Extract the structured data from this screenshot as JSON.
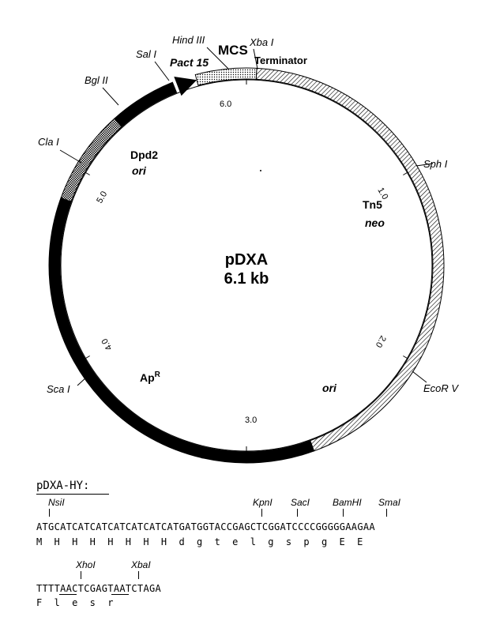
{
  "plasmid": {
    "name": "pDXA",
    "size": "6.1 kb",
    "scale_labels": [
      "1.0",
      "2.0",
      "3.0",
      "4.0",
      "5.0",
      "6.0"
    ],
    "restriction_sites": {
      "hind3": "Hind III",
      "mcs": "MCS",
      "xba1": "Xba I",
      "sal1": "Sal I",
      "bgl2": "Bgl II",
      "cla1": "Cla I",
      "sph1": "Sph I",
      "ecorv": "EcoR V",
      "sca1": "Sca I"
    },
    "features": {
      "pact15": "Pact 15",
      "terminator": "Terminator",
      "dpd2": "Dpd2",
      "ori_dpd2": "ori",
      "tn5": "Tn5",
      "neo": "neo",
      "apr": "Ap",
      "apr_sup": "R",
      "ori_bottom": "ori"
    }
  },
  "sequence": {
    "title": "pDXA-HY:",
    "line1": {
      "sites": [
        "NsiI",
        "KpnI",
        "SacI",
        "BamHI",
        "SmaI"
      ],
      "dna": "ATGCATCATCATCATCATCATCATGATGGTACCGAGCTCGGATCCCCGGGGGAAGAA",
      "protein": [
        "M",
        "H",
        "H",
        "H",
        "H",
        "H",
        "H",
        "H",
        "d",
        "g",
        "t",
        "e",
        "l",
        "g",
        "s",
        "p",
        "g",
        "E",
        "E"
      ]
    },
    "line2": {
      "sites": [
        "XhoI",
        "XbaI"
      ],
      "dna": "TTTTAACTCGAGTAATCTAGA",
      "protein": [
        "F",
        "l",
        "e",
        "s",
        "r"
      ]
    }
  }
}
